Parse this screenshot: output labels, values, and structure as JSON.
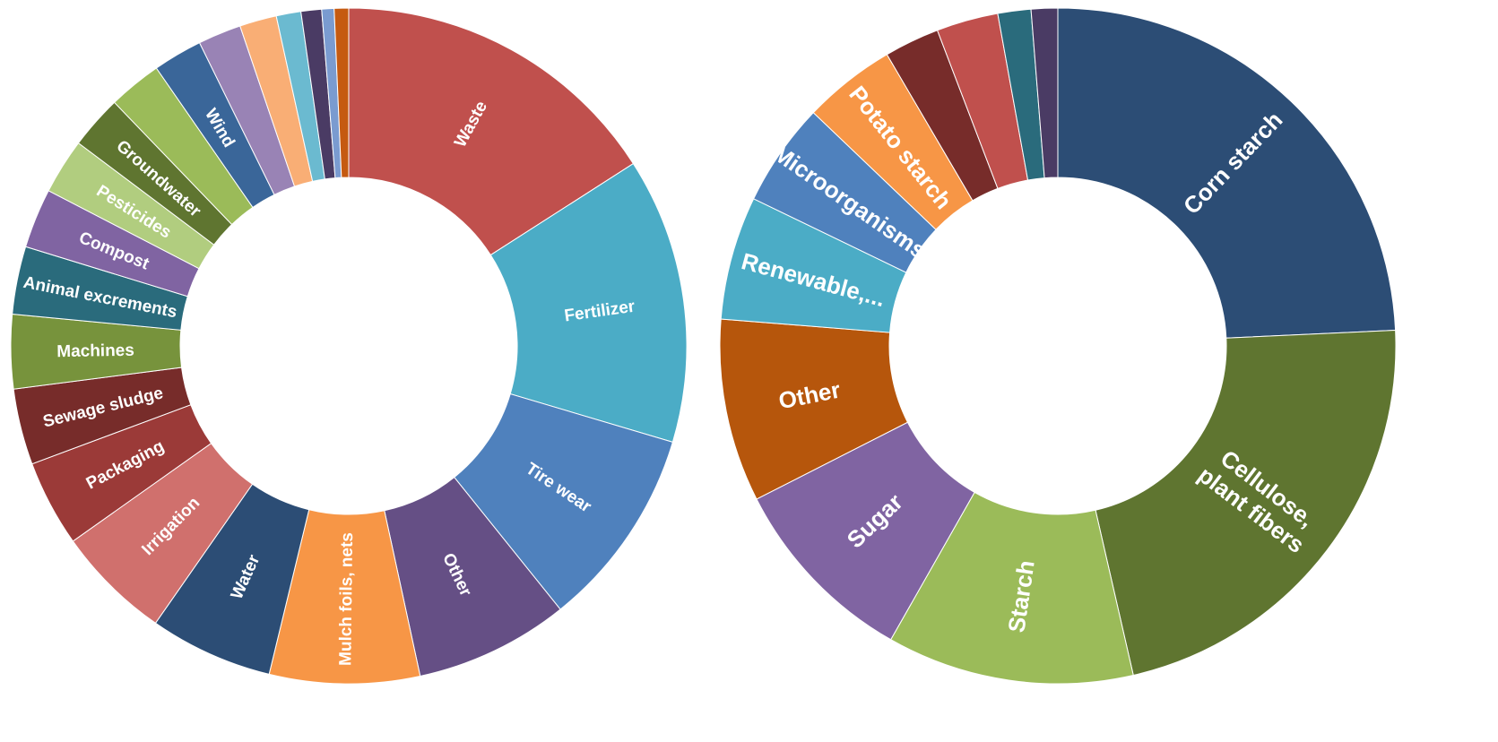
{
  "chart_data": [
    {
      "type": "donut",
      "title": "",
      "colors": [
        "#c0504d",
        "#4bacc6",
        "#4f81bd",
        "#654f85",
        "#f79646",
        "#2c4d75",
        "#d0706d",
        "#9b3a38",
        "#772c2a",
        "#77933c",
        "#2a6b7c",
        "#8064a2",
        "#b1cd7f",
        "#5f7530",
        "#9bbb59",
        "#3a6699",
        "#9983b5",
        "#f9ae75",
        "#6bbad0",
        "#4a3b64",
        "#7a9bd0",
        "#c55a11"
      ],
      "categories": [
        "Waste",
        "Fertilizer",
        "Tire wear",
        "Other",
        "Mulch foils, nets",
        "Water",
        "Irrigation",
        "Packaging",
        "Sewage sludge",
        "Machines",
        "Animal excrements",
        "Compost",
        "Pesticides",
        "Groundwater",
        "",
        "Wind",
        "",
        "",
        "",
        "",
        "",
        ""
      ],
      "values": [
        16.2,
        13.9,
        9.8,
        7.5,
        7.3,
        6.0,
        5.6,
        4.2,
        3.7,
        3.6,
        3.3,
        2.9,
        2.7,
        2.6,
        2.6,
        2.4,
        2.1,
        1.8,
        1.2,
        1.0,
        0.6,
        0.7
      ]
    },
    {
      "type": "donut",
      "title": "",
      "colors": [
        "#2c4d75",
        "#5f7530",
        "#9bbb59",
        "#8064a2",
        "#b6560c",
        "#4bacc6",
        "#4f81bd",
        "#f79646",
        "#772c2a",
        "#c0504d",
        "#2a6b7c",
        "#4a3b64"
      ],
      "categories": [
        "Corn starch",
        "Cellulose, plant fibers",
        "Starch",
        "Sugar",
        "Other",
        "Renewable,...",
        "Microorganisms",
        "Potato starch",
        "",
        "",
        "",
        ""
      ],
      "values": [
        23.0,
        21.0,
        11.2,
        8.8,
        8.3,
        5.6,
        4.7,
        4.2,
        2.5,
        2.8,
        1.5,
        1.2
      ]
    }
  ]
}
